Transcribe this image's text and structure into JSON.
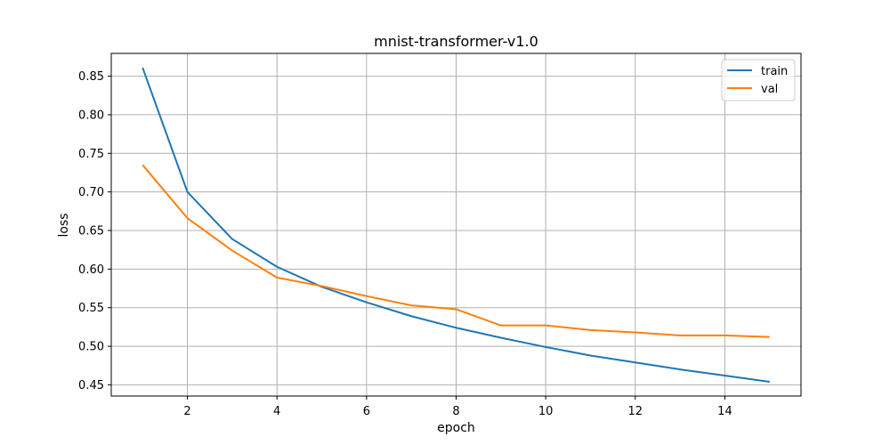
{
  "chart_data": {
    "type": "line",
    "title": "mnist-transformer-v1.0",
    "xlabel": "epoch",
    "ylabel": "loss",
    "x": [
      1,
      2,
      3,
      4,
      5,
      6,
      7,
      8,
      9,
      10,
      11,
      12,
      13,
      14,
      15
    ],
    "series": [
      {
        "name": "train",
        "color": "#1f77b4",
        "values": [
          0.861,
          0.7,
          0.639,
          0.603,
          0.577,
          0.557,
          0.539,
          0.524,
          0.511,
          0.499,
          0.488,
          0.479,
          0.47,
          0.462,
          0.454
        ]
      },
      {
        "name": "val",
        "color": "#ff7f0e",
        "values": [
          0.735,
          0.666,
          0.624,
          0.589,
          0.578,
          0.565,
          0.553,
          0.548,
          0.527,
          0.527,
          0.521,
          0.518,
          0.514,
          0.514,
          0.512
        ]
      }
    ],
    "xlim": [
      0.3,
      15.7
    ],
    "ylim": [
      0.4355,
      0.8795
    ],
    "xticks": [
      "2",
      "4",
      "6",
      "8",
      "10",
      "12",
      "14"
    ],
    "xtick_values": [
      2,
      4,
      6,
      8,
      10,
      12,
      14
    ],
    "yticks": [
      "0.45",
      "0.50",
      "0.55",
      "0.60",
      "0.65",
      "0.70",
      "0.75",
      "0.80",
      "0.85"
    ],
    "ytick_values": [
      0.45,
      0.5,
      0.55,
      0.6,
      0.65,
      0.7,
      0.75,
      0.8,
      0.85
    ],
    "grid": true,
    "legend_position": "top-right"
  }
}
